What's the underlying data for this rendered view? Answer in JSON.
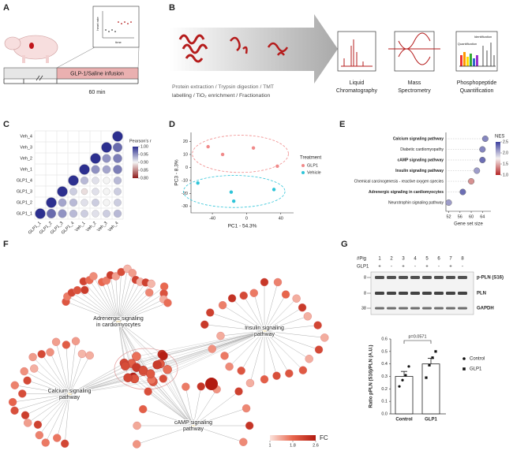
{
  "panels": {
    "A": {
      "label": "A",
      "infusion": "GLP-1/Saline infusion",
      "duration": "60 min",
      "inset": {
        "y_label": "heart rate",
        "x_label": "time"
      }
    },
    "B": {
      "label": "B",
      "steps": [
        "Protein extraction / Trypsin digestion / TMT",
        "labelling / TiO₂ enrichment / Fractionation"
      ],
      "stages": [
        {
          "lines": [
            "Liquid",
            "Chromatography"
          ]
        },
        {
          "lines": [
            "Mass",
            "Spectrometry"
          ]
        },
        {
          "lines": [
            "Phosphopeptide",
            "Quantification"
          ]
        }
      ],
      "inset_labels": [
        "Identification",
        "Quantification"
      ]
    },
    "C": {
      "label": "C",
      "samples": [
        "GLP1_1",
        "GLP1_2",
        "GLP1_3",
        "GLP1_4",
        "Veh_1",
        "Veh_2",
        "Veh_3",
        "Veh_4"
      ],
      "r": [
        [
          1.0,
          0.97,
          0.95,
          0.93,
          0.92,
          0.91,
          0.92,
          0.93
        ],
        [
          1.0,
          0.94,
          0.93,
          0.91,
          0.92,
          0.9,
          0.92
        ],
        [
          1.0,
          0.92,
          0.89,
          0.91,
          0.9,
          0.92
        ],
        [
          1.0,
          0.93,
          0.91,
          0.9,
          0.93
        ],
        [
          1.0,
          0.95,
          0.94,
          0.96
        ],
        [
          1.0,
          0.95,
          0.96
        ],
        [
          1.0,
          0.97
        ],
        [
          1.0
        ]
      ],
      "legend_title": "Pearson's r",
      "clim": [
        0.8,
        1.0
      ],
      "colors": [
        "#8e1b1b",
        "#f4f4f4",
        "#2c2f8f"
      ],
      "legend_ticks": [
        {
          "value": 1.0,
          "label": "1.00"
        },
        {
          "value": 0.95,
          "label": "0.95"
        },
        {
          "value": 0.9,
          "label": "0.90"
        },
        {
          "value": 0.85,
          "label": "0.85"
        },
        {
          "value": 0.8,
          "label": "0.80"
        }
      ]
    },
    "D": {
      "label": "D",
      "type": "scatter",
      "x_label": "PC1 - 54.3%",
      "y_label": "PC3 - 8.3%",
      "xlim": [
        -65,
        55
      ],
      "ylim": [
        -35,
        27
      ],
      "xticks": [
        -40,
        0,
        40
      ],
      "yticks": [
        20,
        10,
        0,
        -10,
        -20,
        -30
      ],
      "legend_title": "Treatment",
      "series": [
        {
          "name": "GLP1",
          "color": "#f08a8a",
          "x": [
            -45,
            -28,
            8,
            36
          ],
          "y": [
            16,
            10,
            15,
            1
          ]
        },
        {
          "name": "Vehicle",
          "color": "#2ec4d8",
          "x": [
            -57,
            -18,
            -15,
            32
          ],
          "y": [
            -12,
            -19,
            -26,
            -17
          ]
        }
      ]
    },
    "E": {
      "label": "E",
      "type": "dot",
      "categories": [
        "Calcium signaling pathway",
        "Diabetic cardiomyopathy",
        "cAMP signaling pathway",
        "Insulin signaling pathway",
        "Chemical carcinogenesis - reactive oxygen species",
        "Adrenergic signaling in cardiomyocytes",
        "Neurotrophin signaling pathway"
      ],
      "bold": [
        true,
        false,
        true,
        true,
        false,
        true,
        false
      ],
      "values": [
        65,
        64,
        64,
        62,
        60,
        57,
        52
      ],
      "nes": [
        2.2,
        2.2,
        2.3,
        2.1,
        1.4,
        2.3,
        2.1
      ],
      "x_label": "Gene set size",
      "xlim": [
        51,
        67
      ],
      "xticks": [
        52,
        56,
        60,
        64
      ],
      "legend_title": "NES",
      "clim": [
        1.0,
        2.5
      ],
      "colors": [
        "#b52525",
        "#f4f0f0",
        "#3b3f9e"
      ],
      "legend_ticks": [
        2.5,
        {
          "value": 2.0,
          "label": "2.0"
        },
        1.5,
        {
          "value": 1.0,
          "label": "1.0"
        }
      ]
    },
    "F": {
      "label": "F",
      "pathways": [
        {
          "lines": [
            "Adrenergic signaling",
            "in cardiomyocytes"
          ]
        },
        {
          "lines": [
            "Insulin signaling",
            "pathway"
          ]
        },
        {
          "lines": [
            "Calcium signaling",
            "pathway"
          ]
        },
        {
          "lines": [
            "cAMP signaling",
            "pathway"
          ]
        }
      ],
      "legend": {
        "title": "FC",
        "ticks": [
          1,
          1.8,
          2.6
        ],
        "colors": [
          "#fbe3dc",
          "#e8664d",
          "#b11a10"
        ]
      }
    },
    "G": {
      "label": "G",
      "pig_label": "#Pig",
      "pigs": [
        1,
        2,
        3,
        4,
        5,
        6,
        7,
        8
      ],
      "treatment_label": "GLP1",
      "treatment": [
        "+",
        "-",
        "+",
        "-",
        "+",
        "-",
        "+",
        "-"
      ],
      "markers": [
        8,
        8,
        38
      ],
      "bands": [
        "p-PLN (S16)",
        "PLN",
        "GAPDH"
      ],
      "chart": {
        "type": "bar",
        "y_label": "Ratio pPLN (S16)/PLN (A.U.)",
        "categories": [
          "Control",
          "GLP1"
        ],
        "values": [
          0.3,
          0.4
        ],
        "errors": [
          0.04,
          0.045
        ],
        "points": [
          [
            0.22,
            0.27,
            0.31,
            0.38
          ],
          [
            0.29,
            0.39,
            0.45,
            0.5
          ]
        ],
        "ylim": [
          0,
          0.6
        ],
        "yticks": [
          {
            "value": 0,
            "label": "0.0"
          },
          0.1,
          0.2,
          0.3,
          0.4,
          0.5,
          0.6
        ],
        "annotation": "p=0.0571",
        "legend": [
          "Control",
          "GLP1"
        ]
      }
    }
  }
}
